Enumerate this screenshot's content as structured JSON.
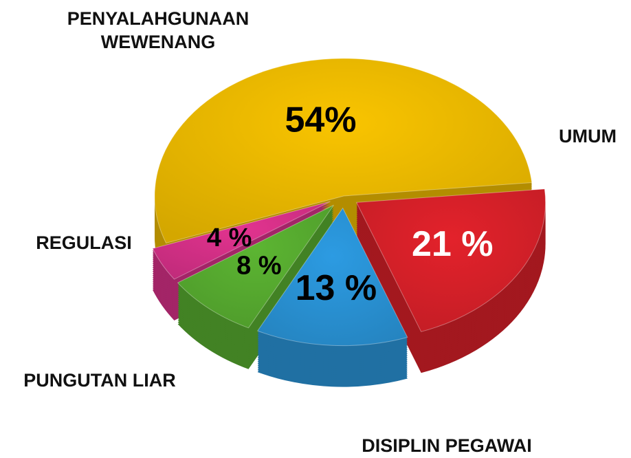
{
  "chart_data": {
    "type": "pie",
    "categories": [
      "PENYALAHGUNAAN WEWENANG",
      "UMUM",
      "DISIPLIN PEGAWAI",
      "PUNGUTAN LIAR",
      "REGULASI"
    ],
    "values": [
      54,
      21,
      13,
      8,
      4
    ],
    "value_labels": [
      "54%",
      "21 %",
      "13 %",
      "8 %",
      "4 %"
    ],
    "colors": [
      "#f9c400",
      "#e3222b",
      "#2c9be2",
      "#5cb532",
      "#e2338f"
    ],
    "value_label_colors": [
      "#000000",
      "#ffffff",
      "#000000",
      "#000000",
      "#000000"
    ]
  }
}
